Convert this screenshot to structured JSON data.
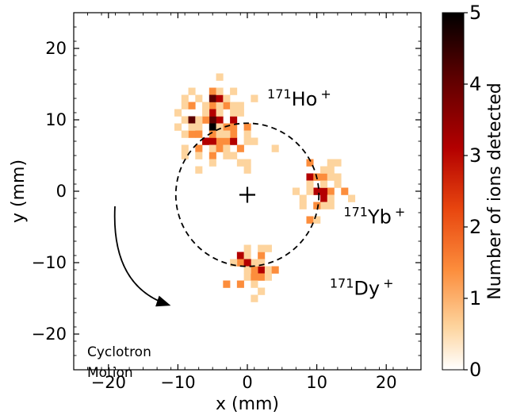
{
  "chart_data": {
    "type": "heatmap",
    "xlabel": "x (mm)",
    "ylabel": "y (mm)",
    "xlim": [
      -25,
      25
    ],
    "ylim": [
      -25,
      25
    ],
    "xticks": [
      -20,
      -10,
      0,
      10,
      20
    ],
    "yticks": [
      -20,
      -10,
      0,
      10,
      20
    ],
    "xtick_labels": [
      "−20",
      "−10",
      "0",
      "10",
      "20"
    ],
    "ytick_labels": [
      "−20",
      "−10",
      "0",
      "10",
      "20"
    ],
    "bin_size_mm": 1,
    "colorbar": {
      "label": "Number of ions detected",
      "range": [
        0,
        5
      ],
      "ticks": [
        0,
        1,
        2,
        3,
        4,
        5
      ],
      "tick_labels": [
        "0",
        "1",
        "2",
        "3",
        "4",
        "5"
      ],
      "colormap": [
        "#ffffff",
        "#fdd49e",
        "#fc8d3c",
        "#e8460f",
        "#b30000",
        "#5c0000",
        "#000000"
      ]
    },
    "circle": {
      "center": [
        0,
        -0.5
      ],
      "radius": 10.3,
      "style": "dashed"
    },
    "center_marker": {
      "x": 0,
      "y": -0.5,
      "symbol": "+"
    },
    "annotations": {
      "ho": {
        "mass": "171",
        "name": "Ho",
        "charge": "+",
        "x": 4,
        "y": 12
      },
      "yb": {
        "mass": "171",
        "name": "Yb",
        "charge": "+",
        "x": 15,
        "y": -4.5
      },
      "dy": {
        "mass": "171",
        "name": "Dy",
        "charge": "+",
        "x": 13,
        "y": -14.5
      },
      "motion_line1": "Cyclotron",
      "motion_line2": "Motion"
    },
    "clusters": [
      {
        "name": "171Ho+",
        "center": [
          -4.5,
          8.8
        ],
        "spread": 2.6,
        "count": 120,
        "max_counts": 5
      },
      {
        "name": "171Yb+",
        "center": [
          10.5,
          0.5
        ],
        "spread": 1.9,
        "count": 46,
        "max_counts": 3
      },
      {
        "name": "171Dy+",
        "center": [
          1.0,
          -11.0
        ],
        "spread": 1.7,
        "count": 42,
        "max_counts": 3
      }
    ]
  }
}
